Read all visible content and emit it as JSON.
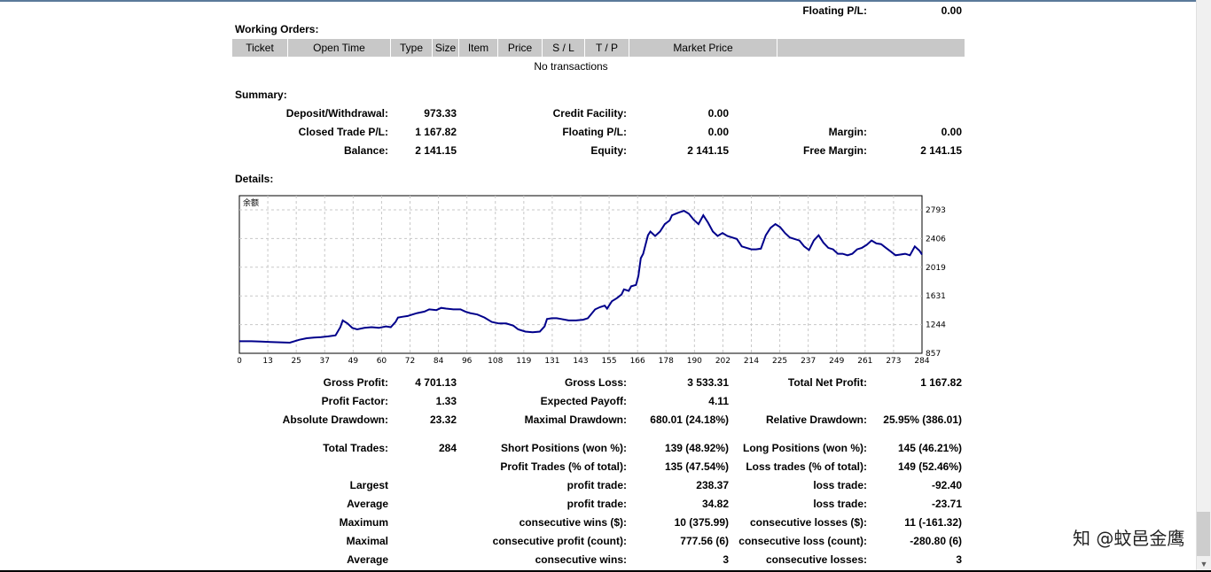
{
  "top": {
    "floating_label": "Floating P/L:",
    "floating_value": "0.00"
  },
  "working_orders": {
    "title": "Working Orders:",
    "columns": [
      "Ticket",
      "Open Time",
      "Type",
      "Size",
      "Item",
      "Price",
      "S / L",
      "T / P",
      "Market Price"
    ],
    "empty_text": "No transactions"
  },
  "summary": {
    "title": "Summary:",
    "deposit_label": "Deposit/Withdrawal:",
    "deposit_value": "973.33",
    "credit_label": "Credit Facility:",
    "credit_value": "0.00",
    "closed_label": "Closed Trade P/L:",
    "closed_value": "1 167.82",
    "floating_label": "Floating P/L:",
    "floating_value": "0.00",
    "margin_label": "Margin:",
    "margin_value": "0.00",
    "balance_label": "Balance:",
    "balance_value": "2 141.15",
    "equity_label": "Equity:",
    "equity_value": "2 141.15",
    "free_margin_label": "Free Margin:",
    "free_margin_value": "2 141.15"
  },
  "details": {
    "title": "Details:"
  },
  "chart_data": {
    "type": "line",
    "title": "余额",
    "x_ticks": [
      "0",
      "13",
      "25",
      "37",
      "49",
      "60",
      "72",
      "84",
      "96",
      "108",
      "119",
      "131",
      "143",
      "155",
      "166",
      "178",
      "190",
      "202",
      "214",
      "225",
      "237",
      "249",
      "261",
      "273",
      "284"
    ],
    "y_ticks": [
      "2793",
      "2406",
      "2019",
      "1631",
      "1244",
      "857"
    ],
    "ylim": [
      857,
      2793
    ],
    "xlim": [
      0,
      284
    ],
    "grid": true,
    "line_color": "#00008b",
    "series": [
      {
        "x": [
          0,
          5,
          9,
          13,
          17,
          21,
          25,
          28,
          31,
          34,
          37,
          40,
          42,
          43,
          45,
          47,
          49,
          52,
          55,
          58,
          61,
          63,
          65,
          66,
          68,
          70,
          72,
          74,
          77,
          79,
          82,
          84,
          86,
          89,
          92,
          94,
          96,
          99,
          102,
          105,
          108,
          111,
          114,
          116,
          119,
          122,
          125,
          127,
          128,
          130,
          132,
          134,
          137,
          140,
          143,
          145,
          148,
          150,
          152,
          153,
          155,
          157,
          159,
          160,
          162,
          163,
          165,
          166,
          167,
          168,
          170,
          171,
          173,
          175,
          177,
          179,
          180,
          183,
          185,
          187,
          189,
          191,
          193,
          195,
          197,
          199,
          201,
          203,
          205,
          207,
          209,
          211,
          213,
          215,
          217,
          219,
          221,
          223,
          225,
          227,
          229,
          231,
          233,
          235,
          237,
          239,
          241,
          243,
          245,
          247,
          249,
          251,
          253,
          255,
          257,
          259,
          261,
          263,
          265,
          267,
          269,
          271,
          273,
          275,
          277,
          279,
          281,
          283,
          284
        ],
        "y": [
          1020,
          1020,
          1015,
          1010,
          1005,
          1000,
          1040,
          1060,
          1070,
          1075,
          1085,
          1100,
          1210,
          1300,
          1260,
          1200,
          1180,
          1200,
          1210,
          1200,
          1220,
          1210,
          1280,
          1340,
          1350,
          1360,
          1380,
          1400,
          1420,
          1450,
          1440,
          1470,
          1460,
          1450,
          1450,
          1420,
          1400,
          1380,
          1340,
          1280,
          1260,
          1260,
          1230,
          1180,
          1150,
          1140,
          1150,
          1220,
          1320,
          1330,
          1330,
          1320,
          1300,
          1300,
          1310,
          1330,
          1450,
          1480,
          1500,
          1460,
          1560,
          1600,
          1650,
          1720,
          1700,
          1760,
          1780,
          1900,
          2140,
          2200,
          2450,
          2500,
          2440,
          2500,
          2600,
          2650,
          2720,
          2760,
          2780,
          2740,
          2660,
          2600,
          2720,
          2620,
          2500,
          2440,
          2480,
          2440,
          2420,
          2400,
          2300,
          2280,
          2260,
          2260,
          2270,
          2450,
          2550,
          2600,
          2560,
          2480,
          2420,
          2400,
          2380,
          2300,
          2250,
          2380,
          2450,
          2350,
          2280,
          2260,
          2200,
          2200,
          2180,
          2200,
          2260,
          2280,
          2320,
          2380,
          2340,
          2330,
          2280,
          2230,
          2180,
          2190,
          2200,
          2180,
          2300,
          2240,
          2190
        ]
      }
    ]
  },
  "stats": {
    "gross_profit_label": "Gross Profit:",
    "gross_profit_value": "4 701.13",
    "gross_loss_label": "Gross Loss:",
    "gross_loss_value": "3 533.31",
    "total_net_profit_label": "Total Net Profit:",
    "total_net_profit_value": "1 167.82",
    "profit_factor_label": "Profit Factor:",
    "profit_factor_value": "1.33",
    "expected_payoff_label": "Expected Payoff:",
    "expected_payoff_value": "4.11",
    "absolute_drawdown_label": "Absolute Drawdown:",
    "absolute_drawdown_value": "23.32",
    "maximal_drawdown_label": "Maximal Drawdown:",
    "maximal_drawdown_value": "680.01 (24.18%)",
    "relative_drawdown_label": "Relative Drawdown:",
    "relative_drawdown_value": "25.95% (386.01)",
    "total_trades_label": "Total Trades:",
    "total_trades_value": "284",
    "short_positions_label": "Short Positions (won %):",
    "short_positions_value": "139 (48.92%)",
    "long_positions_label": "Long Positions (won %):",
    "long_positions_value": "145 (46.21%)",
    "profit_trades_label": "Profit Trades (% of total):",
    "profit_trades_value": "135 (47.54%)",
    "loss_trades_label": "Loss trades (% of total):",
    "loss_trades_value": "149 (52.46%)",
    "largest_label": "Largest",
    "largest_profit_label": "profit trade:",
    "largest_profit_value": "238.37",
    "largest_loss_label": "loss trade:",
    "largest_loss_value": "-92.40",
    "average_label": "Average",
    "average_profit_label": "profit trade:",
    "average_profit_value": "34.82",
    "average_loss_label": "loss trade:",
    "average_loss_value": "-23.71",
    "maximum_label": "Maximum",
    "max_wins_label": "consecutive wins ($):",
    "max_wins_value": "10 (375.99)",
    "max_losses_label": "consecutive losses ($):",
    "max_losses_value": "11 (-161.32)",
    "maximal_label": "Maximal",
    "maximal_profit_label": "consecutive profit (count):",
    "maximal_profit_value": "777.56 (6)",
    "maximal_loss_label": "consecutive loss (count):",
    "maximal_loss_value": "-280.80 (6)",
    "average2_label": "Average",
    "avg_wins_label": "consecutive wins:",
    "avg_wins_value": "3",
    "avg_losses_label": "consecutive losses:",
    "avg_losses_value": "3"
  },
  "watermark": "知 @蚊邑金鹰"
}
